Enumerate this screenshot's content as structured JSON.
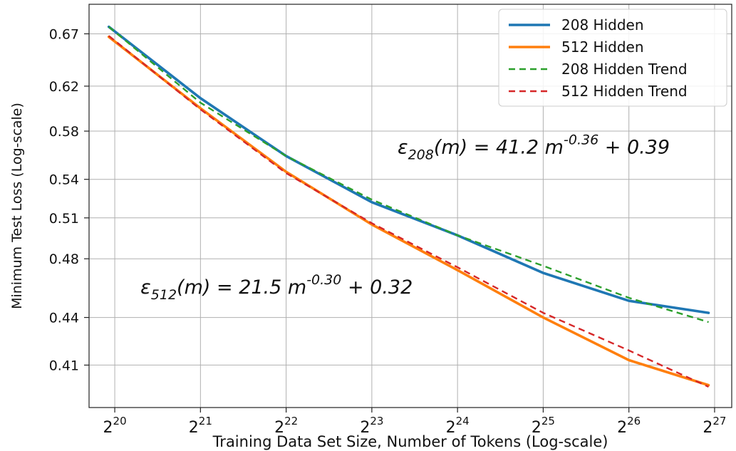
{
  "chart_data": {
    "type": "line",
    "xlabel": "Training Data Set Size, Number of Tokens (Log-scale)",
    "ylabel": "Minimum Test Loss (Log-scale)",
    "xscale": "log2",
    "yscale": "log",
    "grid": true,
    "legend_position": "top-right",
    "xlim": [
      19.7,
      27.2
    ],
    "ylim": [
      0.385,
      0.7
    ],
    "x_ticks": [
      {
        "value": 20,
        "base": "2",
        "exp": "20"
      },
      {
        "value": 21,
        "base": "2",
        "exp": "21"
      },
      {
        "value": 22,
        "base": "2",
        "exp": "22"
      },
      {
        "value": 23,
        "base": "2",
        "exp": "23"
      },
      {
        "value": 24,
        "base": "2",
        "exp": "24"
      },
      {
        "value": 25,
        "base": "2",
        "exp": "25"
      },
      {
        "value": 26,
        "base": "2",
        "exp": "26"
      },
      {
        "value": 27,
        "base": "2",
        "exp": "27"
      }
    ],
    "y_ticks": [
      {
        "value": 0.41,
        "label": "0.41"
      },
      {
        "value": 0.44,
        "label": "0.44"
      },
      {
        "value": 0.48,
        "label": "0.48"
      },
      {
        "value": 0.51,
        "label": "0.51"
      },
      {
        "value": 0.54,
        "label": "0.54"
      },
      {
        "value": 0.58,
        "label": "0.58"
      },
      {
        "value": 0.62,
        "label": "0.62"
      },
      {
        "value": 0.67,
        "label": "0.67"
      }
    ],
    "series": [
      {
        "name": "208 Hidden",
        "color": "#1f77b4",
        "style": "solid",
        "x": [
          19.93,
          21,
          22,
          23,
          24,
          25,
          26,
          26.93
        ],
        "y": [
          0.677,
          0.609,
          0.559,
          0.522,
          0.497,
          0.47,
          0.451,
          0.443
        ]
      },
      {
        "name": "512 Hidden",
        "color": "#ff7f0e",
        "style": "solid",
        "x": [
          19.93,
          21,
          22,
          23,
          24,
          25,
          26,
          26.93
        ],
        "y": [
          0.667,
          0.6,
          0.546,
          0.505,
          0.472,
          0.44,
          0.413,
          0.398
        ]
      },
      {
        "name": "208 Hidden Trend",
        "color": "#2ca02c",
        "style": "dashed",
        "x": [
          19.93,
          21,
          22,
          23,
          24,
          25,
          26,
          26.93
        ],
        "y": [
          0.677,
          0.605,
          0.559,
          0.524,
          0.497,
          0.475,
          0.453,
          0.437
        ]
      },
      {
        "name": "512 Hidden Trend",
        "color": "#d62728",
        "style": "dashed",
        "x": [
          19.93,
          21,
          22,
          23,
          24,
          25,
          26,
          26.93
        ],
        "y": [
          0.668,
          0.599,
          0.545,
          0.506,
          0.474,
          0.443,
          0.419,
          0.397
        ]
      }
    ],
    "annotations": [
      {
        "sym": "ε",
        "sub": "208",
        "pre": "(m) = 41.2 m",
        "sup": "-0.36",
        "post": " + 0.39",
        "x": 23.3,
        "y": 0.561
      },
      {
        "sym": "ε",
        "sub": "512",
        "pre": "(m) = 21.5 m",
        "sup": "-0.30",
        "post": " + 0.32",
        "x": 20.3,
        "y": 0.456
      }
    ]
  }
}
